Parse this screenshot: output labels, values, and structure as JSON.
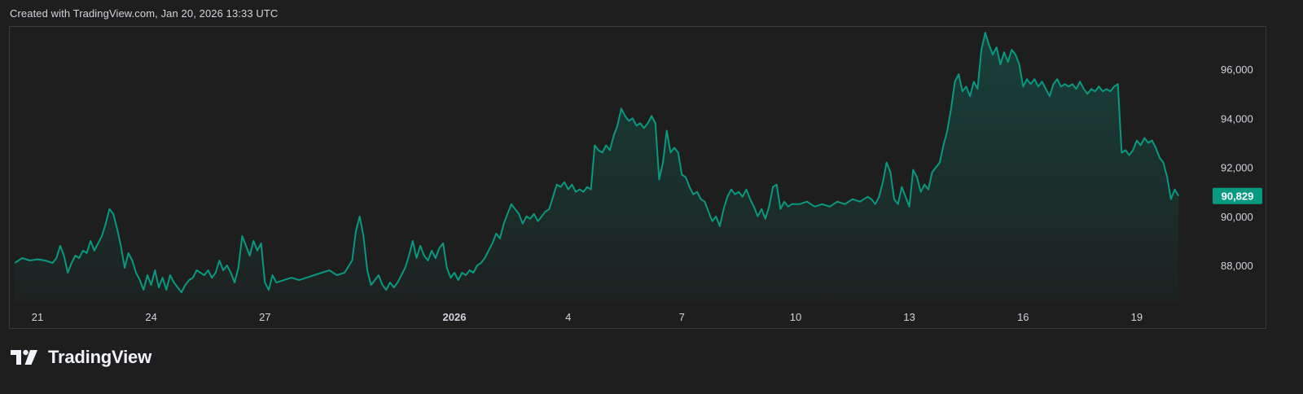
{
  "caption": "Created with TradingView.com, Jan 20, 2026 13:33 UTC",
  "brand": {
    "logo_text": "TradingView",
    "icon": "tradingview-logo-icon"
  },
  "colors": {
    "background": "#1e1e1e",
    "line": "#089981",
    "price_tag": "#089981",
    "text": "#d1d4dc"
  },
  "chart_data": {
    "type": "area",
    "title": "",
    "xlabel": "",
    "ylabel": "",
    "grid": false,
    "last_price": "90,829",
    "last_value": 90829,
    "ylim": [
      86700,
      97700
    ],
    "y_ticks": [
      {
        "label": "96,000",
        "value": 96000
      },
      {
        "label": "94,000",
        "value": 94000
      },
      {
        "label": "92,000",
        "value": 92000
      },
      {
        "label": "90,000",
        "value": 90000
      },
      {
        "label": "88,000",
        "value": 88000
      }
    ],
    "x_ticks": [
      {
        "label": "21",
        "day": 0,
        "bold": false
      },
      {
        "label": "24",
        "day": 3,
        "bold": false
      },
      {
        "label": "27",
        "day": 6,
        "bold": false
      },
      {
        "label": "2026",
        "day": 11,
        "bold": true
      },
      {
        "label": "4",
        "day": 14,
        "bold": false
      },
      {
        "label": "7",
        "day": 17,
        "bold": false
      },
      {
        "label": "10",
        "day": 20,
        "bold": false
      },
      {
        "label": "13",
        "day": 23,
        "bold": false
      },
      {
        "label": "16",
        "day": 26,
        "bold": false
      },
      {
        "label": "19",
        "day": 29,
        "bold": false
      }
    ],
    "x_unit": "days since Dec 21, 2025 00:00 UTC",
    "series": [
      {
        "points": [
          [
            -0.6,
            88100
          ],
          [
            -0.4,
            88300
          ],
          [
            -0.2,
            88200
          ],
          [
            0.0,
            88250
          ],
          [
            0.2,
            88200
          ],
          [
            0.4,
            88100
          ],
          [
            0.5,
            88300
          ],
          [
            0.6,
            88800
          ],
          [
            0.7,
            88400
          ],
          [
            0.8,
            87700
          ],
          [
            0.9,
            88100
          ],
          [
            1.0,
            88400
          ],
          [
            1.1,
            88300
          ],
          [
            1.2,
            88600
          ],
          [
            1.3,
            88500
          ],
          [
            1.4,
            89000
          ],
          [
            1.5,
            88600
          ],
          [
            1.6,
            88900
          ],
          [
            1.7,
            89200
          ],
          [
            1.8,
            89700
          ],
          [
            1.9,
            90300
          ],
          [
            2.0,
            90100
          ],
          [
            2.1,
            89500
          ],
          [
            2.2,
            88800
          ],
          [
            2.3,
            87900
          ],
          [
            2.4,
            88500
          ],
          [
            2.5,
            88200
          ],
          [
            2.6,
            87700
          ],
          [
            2.7,
            87400
          ],
          [
            2.8,
            87000
          ],
          [
            2.9,
            87600
          ],
          [
            3.0,
            87200
          ],
          [
            3.1,
            87800
          ],
          [
            3.2,
            87100
          ],
          [
            3.3,
            87500
          ],
          [
            3.4,
            87000
          ],
          [
            3.5,
            87600
          ],
          [
            3.6,
            87300
          ],
          [
            3.7,
            87100
          ],
          [
            3.8,
            86900
          ],
          [
            3.9,
            87200
          ],
          [
            4.0,
            87400
          ],
          [
            4.1,
            87500
          ],
          [
            4.2,
            87800
          ],
          [
            4.3,
            87700
          ],
          [
            4.4,
            87600
          ],
          [
            4.5,
            87800
          ],
          [
            4.6,
            87500
          ],
          [
            4.7,
            87700
          ],
          [
            4.8,
            88200
          ],
          [
            4.9,
            87800
          ],
          [
            5.0,
            88000
          ],
          [
            5.1,
            87700
          ],
          [
            5.2,
            87300
          ],
          [
            5.3,
            87900
          ],
          [
            5.4,
            89200
          ],
          [
            5.5,
            88800
          ],
          [
            5.6,
            88400
          ],
          [
            5.7,
            89000
          ],
          [
            5.8,
            88600
          ],
          [
            5.9,
            88900
          ],
          [
            6.0,
            87300
          ],
          [
            6.1,
            87000
          ],
          [
            6.2,
            87600
          ],
          [
            6.3,
            87300
          ],
          [
            6.5,
            87400
          ],
          [
            6.7,
            87500
          ],
          [
            6.9,
            87400
          ],
          [
            7.1,
            87500
          ],
          [
            7.3,
            87600
          ],
          [
            7.5,
            87700
          ],
          [
            7.7,
            87800
          ],
          [
            7.9,
            87600
          ],
          [
            8.1,
            87700
          ],
          [
            8.3,
            88200
          ],
          [
            8.4,
            89400
          ],
          [
            8.5,
            90000
          ],
          [
            8.6,
            89200
          ],
          [
            8.7,
            87800
          ],
          [
            8.8,
            87200
          ],
          [
            8.9,
            87400
          ],
          [
            9.0,
            87600
          ],
          [
            9.1,
            87200
          ],
          [
            9.2,
            87000
          ],
          [
            9.3,
            87300
          ],
          [
            9.4,
            87100
          ],
          [
            9.5,
            87300
          ],
          [
            9.6,
            87600
          ],
          [
            9.7,
            87900
          ],
          [
            9.8,
            88400
          ],
          [
            9.9,
            89000
          ],
          [
            10.0,
            88300
          ],
          [
            10.1,
            88800
          ],
          [
            10.2,
            88400
          ],
          [
            10.3,
            88200
          ],
          [
            10.4,
            88600
          ],
          [
            10.5,
            88300
          ],
          [
            10.6,
            88700
          ],
          [
            10.7,
            88900
          ],
          [
            10.8,
            87900
          ],
          [
            10.9,
            87500
          ],
          [
            11.0,
            87700
          ],
          [
            11.1,
            87400
          ],
          [
            11.2,
            87700
          ],
          [
            11.3,
            87600
          ],
          [
            11.4,
            87800
          ],
          [
            11.5,
            87700
          ],
          [
            11.6,
            88000
          ],
          [
            11.7,
            88100
          ],
          [
            11.8,
            88300
          ],
          [
            11.9,
            88600
          ],
          [
            12.0,
            88900
          ],
          [
            12.1,
            89300
          ],
          [
            12.2,
            89100
          ],
          [
            12.3,
            89700
          ],
          [
            12.4,
            90100
          ],
          [
            12.5,
            90500
          ],
          [
            12.6,
            90300
          ],
          [
            12.7,
            90100
          ],
          [
            12.8,
            89700
          ],
          [
            12.9,
            90000
          ],
          [
            13.0,
            89900
          ],
          [
            13.1,
            90100
          ],
          [
            13.2,
            89800
          ],
          [
            13.3,
            90000
          ],
          [
            13.4,
            90200
          ],
          [
            13.5,
            90300
          ],
          [
            13.6,
            90800
          ],
          [
            13.7,
            91300
          ],
          [
            13.8,
            91200
          ],
          [
            13.9,
            91400
          ],
          [
            14.0,
            91100
          ],
          [
            14.1,
            91300
          ],
          [
            14.2,
            91000
          ],
          [
            14.3,
            91100
          ],
          [
            14.4,
            91000
          ],
          [
            14.5,
            91200
          ],
          [
            14.6,
            91100
          ],
          [
            14.7,
            92900
          ],
          [
            14.8,
            92700
          ],
          [
            14.9,
            92600
          ],
          [
            15.0,
            92900
          ],
          [
            15.1,
            92700
          ],
          [
            15.2,
            93300
          ],
          [
            15.3,
            93700
          ],
          [
            15.4,
            94400
          ],
          [
            15.5,
            94100
          ],
          [
            15.6,
            93900
          ],
          [
            15.7,
            94000
          ],
          [
            15.8,
            93700
          ],
          [
            15.9,
            93800
          ],
          [
            16.0,
            93600
          ],
          [
            16.1,
            93800
          ],
          [
            16.2,
            94100
          ],
          [
            16.3,
            93800
          ],
          [
            16.4,
            91500
          ],
          [
            16.5,
            92200
          ],
          [
            16.6,
            93500
          ],
          [
            16.7,
            92600
          ],
          [
            16.8,
            92800
          ],
          [
            16.9,
            92600
          ],
          [
            17.0,
            91700
          ],
          [
            17.1,
            91600
          ],
          [
            17.2,
            91200
          ],
          [
            17.3,
            90900
          ],
          [
            17.4,
            91000
          ],
          [
            17.5,
            90700
          ],
          [
            17.6,
            90600
          ],
          [
            17.7,
            90200
          ],
          [
            17.8,
            89800
          ],
          [
            17.9,
            90000
          ],
          [
            18.0,
            89600
          ],
          [
            18.1,
            90300
          ],
          [
            18.2,
            90800
          ],
          [
            18.3,
            91100
          ],
          [
            18.4,
            90900
          ],
          [
            18.5,
            91000
          ],
          [
            18.6,
            90800
          ],
          [
            18.7,
            91100
          ],
          [
            18.8,
            90700
          ],
          [
            18.9,
            90400
          ],
          [
            19.0,
            90000
          ],
          [
            19.1,
            90300
          ],
          [
            19.2,
            89900
          ],
          [
            19.3,
            90400
          ],
          [
            19.4,
            91200
          ],
          [
            19.5,
            91300
          ],
          [
            19.6,
            90300
          ],
          [
            19.7,
            90600
          ],
          [
            19.8,
            90400
          ],
          [
            19.9,
            90500
          ],
          [
            20.1,
            90500
          ],
          [
            20.3,
            90600
          ],
          [
            20.5,
            90400
          ],
          [
            20.7,
            90500
          ],
          [
            20.9,
            90400
          ],
          [
            21.1,
            90600
          ],
          [
            21.3,
            90500
          ],
          [
            21.5,
            90700
          ],
          [
            21.7,
            90600
          ],
          [
            21.9,
            90800
          ],
          [
            22.0,
            90700
          ],
          [
            22.1,
            90500
          ],
          [
            22.2,
            90800
          ],
          [
            22.3,
            91400
          ],
          [
            22.4,
            92200
          ],
          [
            22.5,
            91800
          ],
          [
            22.6,
            90700
          ],
          [
            22.7,
            90500
          ],
          [
            22.8,
            91200
          ],
          [
            22.9,
            90800
          ],
          [
            23.0,
            90400
          ],
          [
            23.1,
            91900
          ],
          [
            23.2,
            91600
          ],
          [
            23.3,
            91000
          ],
          [
            23.4,
            91300
          ],
          [
            23.5,
            91100
          ],
          [
            23.6,
            91800
          ],
          [
            23.7,
            92000
          ],
          [
            23.8,
            92200
          ],
          [
            23.9,
            92900
          ],
          [
            24.0,
            93500
          ],
          [
            24.1,
            94400
          ],
          [
            24.2,
            95500
          ],
          [
            24.3,
            95800
          ],
          [
            24.4,
            95100
          ],
          [
            24.5,
            95300
          ],
          [
            24.6,
            94900
          ],
          [
            24.7,
            95500
          ],
          [
            24.8,
            95200
          ],
          [
            24.9,
            96800
          ],
          [
            25.0,
            97500
          ],
          [
            25.1,
            97000
          ],
          [
            25.2,
            96600
          ],
          [
            25.3,
            96900
          ],
          [
            25.4,
            96200
          ],
          [
            25.5,
            96700
          ],
          [
            25.6,
            96300
          ],
          [
            25.7,
            96800
          ],
          [
            25.8,
            96600
          ],
          [
            25.9,
            96200
          ],
          [
            26.0,
            95300
          ],
          [
            26.1,
            95600
          ],
          [
            26.2,
            95400
          ],
          [
            26.3,
            95600
          ],
          [
            26.4,
            95300
          ],
          [
            26.5,
            95500
          ],
          [
            26.6,
            95200
          ],
          [
            26.7,
            94900
          ],
          [
            26.8,
            95400
          ],
          [
            26.9,
            95600
          ],
          [
            27.0,
            95300
          ],
          [
            27.1,
            95400
          ],
          [
            27.2,
            95300
          ],
          [
            27.3,
            95400
          ],
          [
            27.4,
            95200
          ],
          [
            27.5,
            95500
          ],
          [
            27.6,
            95200
          ],
          [
            27.7,
            95000
          ],
          [
            27.8,
            95200
          ],
          [
            27.9,
            95100
          ],
          [
            28.0,
            95300
          ],
          [
            28.1,
            95100
          ],
          [
            28.2,
            95200
          ],
          [
            28.3,
            95100
          ],
          [
            28.4,
            95300
          ],
          [
            28.5,
            95400
          ],
          [
            28.6,
            92600
          ],
          [
            28.7,
            92700
          ],
          [
            28.8,
            92500
          ],
          [
            28.9,
            92700
          ],
          [
            29.0,
            93100
          ],
          [
            29.1,
            92900
          ],
          [
            29.2,
            93200
          ],
          [
            29.3,
            93000
          ],
          [
            29.4,
            93100
          ],
          [
            29.5,
            92800
          ],
          [
            29.6,
            92400
          ],
          [
            29.7,
            92200
          ],
          [
            29.8,
            91600
          ],
          [
            29.9,
            90700
          ],
          [
            30.0,
            91100
          ],
          [
            30.1,
            90829
          ]
        ]
      }
    ]
  }
}
